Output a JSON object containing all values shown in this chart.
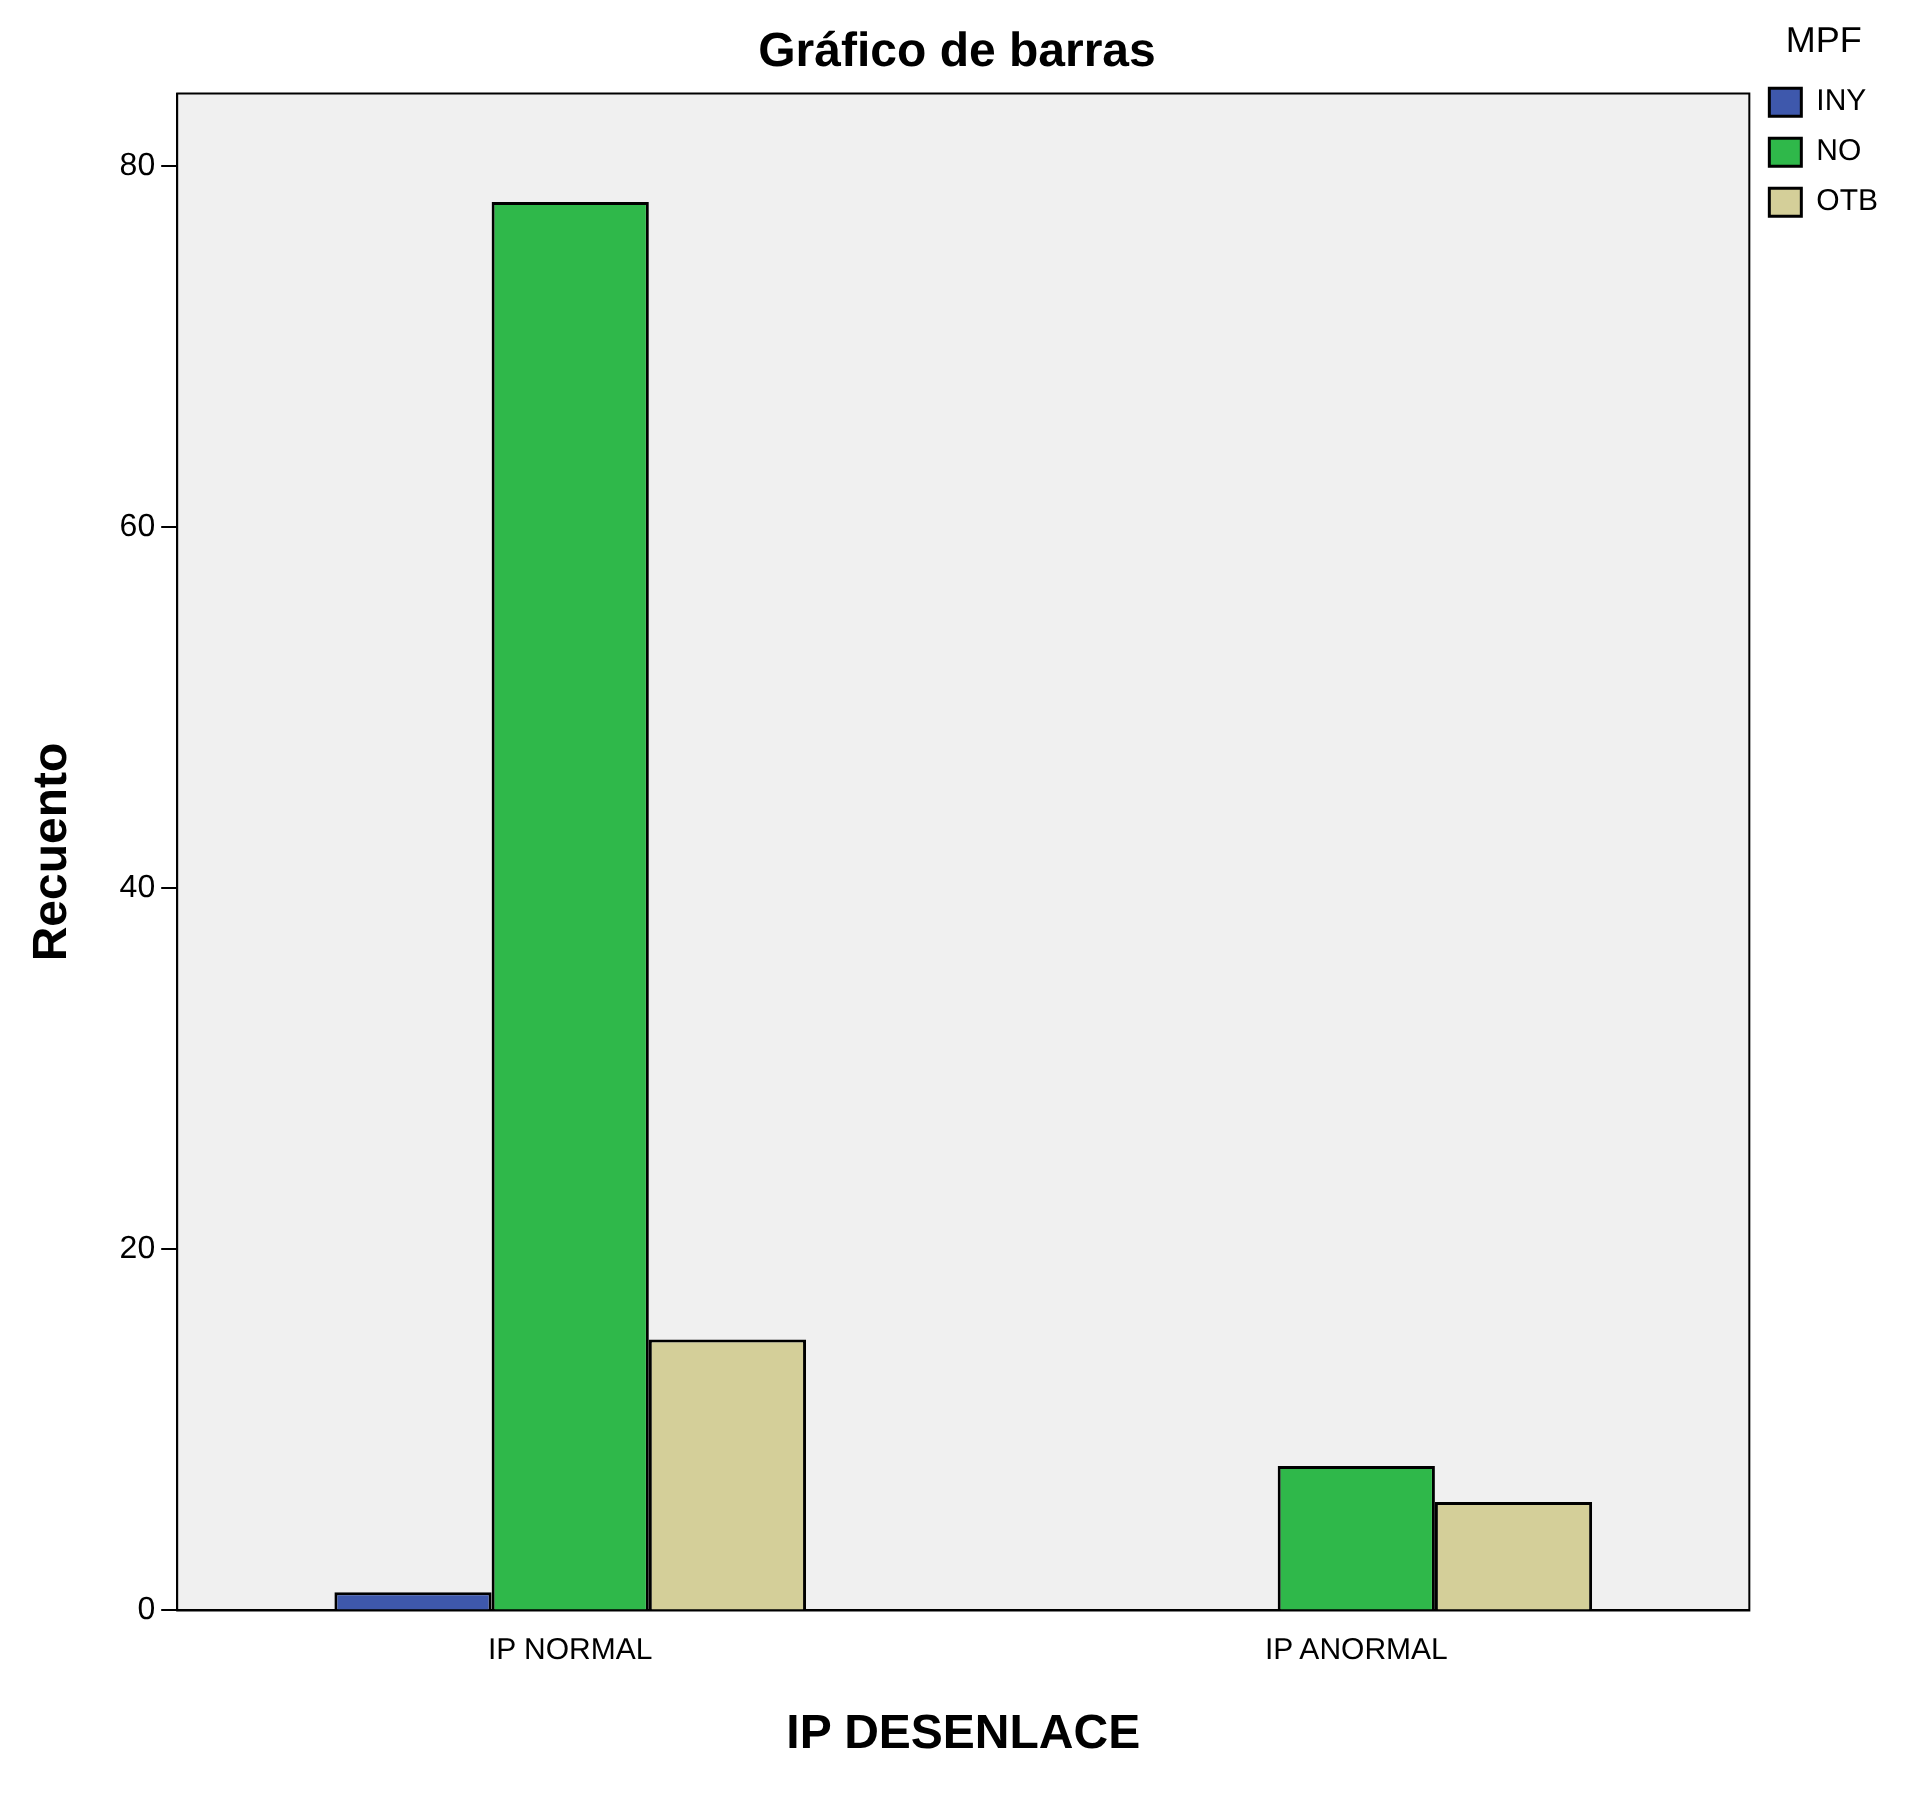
{
  "chart_data": {
    "type": "bar",
    "title": "Gráfico de barras",
    "xlabel": "IP DESENLACE",
    "ylabel": "Recuento",
    "legend_title": "MPF",
    "categories": [
      "IP NORMAL",
      "IP ANORMAL"
    ],
    "series": [
      {
        "name": "INY",
        "color": "#3e58ac",
        "values": [
          1,
          null
        ]
      },
      {
        "name": "NO",
        "color": "#2fb84a",
        "values": [
          78,
          8
        ]
      },
      {
        "name": "OTB",
        "color": "#d4cf99",
        "values": [
          15,
          6
        ]
      }
    ],
    "ylim": [
      0,
      84
    ],
    "yticks": [
      0,
      20,
      40,
      60,
      80
    ],
    "grid": false,
    "legend": "top right"
  }
}
